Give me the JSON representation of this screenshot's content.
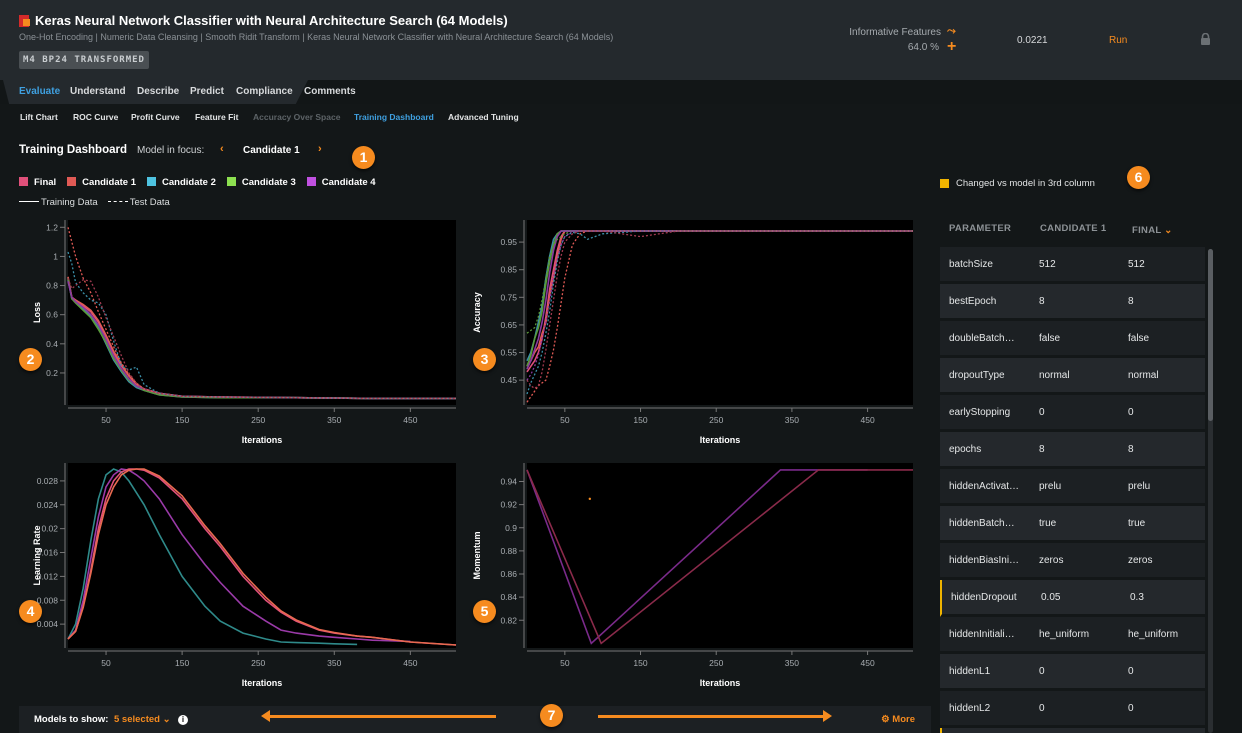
{
  "header": {
    "title": "Keras Neural Network Classifier with Neural Architecture Search (64 Models)",
    "subtitle": "One-Hot Encoding | Numeric Data Cleansing | Smooth Ridit Transform | Keras Neural Network Classifier with Neural Architecture Search (64 Models)",
    "tag": "M4 BP24 TRANSFORMED",
    "informative_label": "Informative Features",
    "informative_pct": "64.0 %",
    "score": "0.0221",
    "run_label": "Run",
    "icons": [
      "feature-list-icon",
      "plus-icon",
      "lock-icon"
    ]
  },
  "tabs": [
    "Evaluate",
    "Understand",
    "Describe",
    "Predict",
    "Compliance",
    "Comments"
  ],
  "subtabs": [
    "Lift Chart",
    "ROC Curve",
    "Profit Curve",
    "Feature Fit",
    "Accuracy Over Space",
    "Training Dashboard",
    "Advanced Tuning"
  ],
  "dashboard": {
    "title": "Training Dashboard",
    "focus_label": "Model in focus:",
    "focus_value": "Candidate 1",
    "prev": "‹",
    "next": "›",
    "legend": [
      {
        "name": "Final",
        "color": "#e0507a"
      },
      {
        "name": "Candidate 1",
        "color": "#e05a55"
      },
      {
        "name": "Candidate 2",
        "color": "#4ec3e0"
      },
      {
        "name": "Candidate 3",
        "color": "#8de050"
      },
      {
        "name": "Candidate 4",
        "color": "#c050e0"
      }
    ],
    "line_legend": {
      "training": "Training Data",
      "test": "Test Data"
    }
  },
  "badges": [
    "1",
    "2",
    "3",
    "4",
    "5",
    "6",
    "7"
  ],
  "chart_data": [
    {
      "type": "line",
      "ylabel": "Loss",
      "xlabel": "Iterations",
      "xlim": [
        0,
        510
      ],
      "ylim": [
        -0.02,
        1.25
      ],
      "xticks": [
        50,
        150,
        250,
        350,
        450
      ],
      "yticks": [
        0.2,
        0.4,
        0.6,
        0.8,
        1,
        1.2
      ],
      "x": [
        0,
        5,
        10,
        20,
        30,
        40,
        50,
        60,
        70,
        80,
        90,
        100,
        120,
        150,
        200,
        300,
        400,
        510
      ],
      "series": [
        {
          "name": "Final",
          "dash": false,
          "color": "#e0507a",
          "values": [
            0.85,
            0.72,
            0.7,
            0.66,
            0.62,
            0.55,
            0.45,
            0.34,
            0.25,
            0.18,
            0.12,
            0.09,
            0.06,
            0.04,
            0.035,
            0.03,
            0.025,
            0.025
          ]
        },
        {
          "name": "Candidate 1",
          "dash": false,
          "color": "#e05a55",
          "values": [
            0.86,
            0.72,
            0.7,
            0.67,
            0.63,
            0.56,
            0.46,
            0.35,
            0.26,
            0.18,
            0.12,
            0.09,
            0.06,
            0.04,
            0.035,
            0.03,
            0.025,
            0.025
          ]
        },
        {
          "name": "Candidate 2",
          "dash": false,
          "color": "#3a8fa8",
          "values": [
            0.84,
            0.71,
            0.69,
            0.64,
            0.59,
            0.51,
            0.4,
            0.29,
            0.21,
            0.14,
            0.1,
            0.08,
            0.05,
            0.035,
            0.03,
            0.03,
            0.025,
            0.025
          ]
        },
        {
          "name": "Candidate 3",
          "dash": false,
          "color": "#5a9a3a",
          "values": [
            0.85,
            0.71,
            0.68,
            0.63,
            0.58,
            0.5,
            0.41,
            0.3,
            0.22,
            0.15,
            0.11,
            0.08,
            0.05,
            0.035,
            0.03,
            0.03,
            0.025,
            0.025
          ]
        },
        {
          "name": "Candidate 4",
          "dash": false,
          "color": "#8a3aa0",
          "values": [
            0.83,
            0.72,
            0.69,
            0.65,
            0.6,
            0.53,
            0.43,
            0.32,
            0.23,
            0.16,
            0.11,
            0.09,
            0.06,
            0.04,
            0.035,
            0.03,
            0.025,
            0.025
          ]
        },
        {
          "name": "Candidate 1",
          "dash": true,
          "color": "#e05a55",
          "values": [
            1.2,
            1.1,
            1.0,
            0.85,
            0.75,
            0.62,
            0.5,
            0.38,
            0.27,
            0.19,
            0.13,
            0.09,
            0.06,
            0.04,
            0.035,
            0.03,
            0.025,
            0.025
          ]
        },
        {
          "name": "Candidate 2",
          "dash": true,
          "color": "#3a8fa8",
          "values": [
            1.03,
            0.95,
            0.82,
            0.75,
            0.7,
            0.68,
            0.6,
            0.42,
            0.25,
            0.22,
            0.24,
            0.12,
            0.06,
            0.04,
            0.035,
            0.03,
            0.025,
            0.025
          ]
        },
        {
          "name": "Final",
          "dash": true,
          "color": "#a03a50",
          "values": [
            0.85,
            0.78,
            0.8,
            0.84,
            0.83,
            0.72,
            0.58,
            0.45,
            0.32,
            0.2,
            0.13,
            0.09,
            0.06,
            0.04,
            0.035,
            0.03,
            0.025,
            0.025
          ]
        }
      ]
    },
    {
      "type": "line",
      "ylabel": "Accuracy",
      "xlabel": "Iterations",
      "xlim": [
        0,
        510
      ],
      "ylim": [
        0.36,
        1.03
      ],
      "xticks": [
        50,
        150,
        250,
        350,
        450
      ],
      "yticks": [
        0.45,
        0.55,
        0.65,
        0.75,
        0.85,
        0.95
      ],
      "x": [
        0,
        5,
        10,
        15,
        20,
        25,
        30,
        35,
        40,
        45,
        50,
        60,
        70,
        80,
        100,
        150,
        200,
        300,
        400,
        510
      ],
      "series": [
        {
          "name": "Final",
          "dash": false,
          "color": "#e0507a",
          "values": [
            0.48,
            0.5,
            0.52,
            0.55,
            0.6,
            0.68,
            0.78,
            0.85,
            0.92,
            0.97,
            0.99,
            0.99,
            0.99,
            0.99,
            0.99,
            0.99,
            0.99,
            0.99,
            0.99,
            0.99
          ]
        },
        {
          "name": "Candidate 1",
          "dash": false,
          "color": "#e05a55",
          "values": [
            0.5,
            0.52,
            0.55,
            0.57,
            0.62,
            0.66,
            0.76,
            0.82,
            0.9,
            0.96,
            0.99,
            0.99,
            0.99,
            0.99,
            0.99,
            0.99,
            0.99,
            0.99,
            0.99,
            0.99
          ]
        },
        {
          "name": "Candidate 2",
          "dash": false,
          "color": "#3a8fa8",
          "values": [
            0.52,
            0.55,
            0.6,
            0.66,
            0.72,
            0.82,
            0.9,
            0.96,
            0.98,
            0.99,
            0.99,
            0.99,
            0.99,
            0.99,
            0.99,
            0.99,
            0.99,
            0.99,
            0.99,
            0.99
          ]
        },
        {
          "name": "Candidate 3",
          "dash": false,
          "color": "#5a9a3a",
          "values": [
            0.5,
            0.54,
            0.6,
            0.64,
            0.7,
            0.8,
            0.88,
            0.94,
            0.98,
            0.99,
            0.99,
            0.99,
            0.99,
            0.99,
            0.99,
            0.99,
            0.99,
            0.99,
            0.99,
            0.99
          ]
        },
        {
          "name": "Candidate 4",
          "dash": false,
          "color": "#8a3aa0",
          "values": [
            0.49,
            0.52,
            0.56,
            0.6,
            0.66,
            0.74,
            0.84,
            0.92,
            0.97,
            0.99,
            0.99,
            0.99,
            0.99,
            0.99,
            0.99,
            0.99,
            0.99,
            0.99,
            0.99,
            0.99
          ]
        },
        {
          "name": "Candidate 1",
          "dash": true,
          "color": "#e05a55",
          "values": [
            0.37,
            0.39,
            0.41,
            0.43,
            0.44,
            0.45,
            0.5,
            0.56,
            0.64,
            0.73,
            0.82,
            0.94,
            0.98,
            0.99,
            0.99,
            0.99,
            0.99,
            0.99,
            0.99,
            0.99
          ]
        },
        {
          "name": "Candidate 2",
          "dash": true,
          "color": "#3a8fa8",
          "values": [
            0.4,
            0.44,
            0.47,
            0.5,
            0.55,
            0.62,
            0.7,
            0.8,
            0.88,
            0.94,
            0.97,
            0.985,
            0.98,
            0.96,
            0.98,
            0.99,
            0.99,
            0.99,
            0.99,
            0.99
          ]
        },
        {
          "name": "Candidate 3",
          "dash": true,
          "color": "#5a9a3a",
          "values": [
            0.62,
            0.63,
            0.64,
            0.68,
            0.74,
            0.82,
            0.9,
            0.94,
            0.96,
            0.97,
            0.98,
            0.99,
            0.99,
            0.99,
            0.99,
            0.99,
            0.99,
            0.99,
            0.99,
            0.99
          ]
        },
        {
          "name": "Candidate 4",
          "dash": true,
          "color": "#8a3aa0",
          "values": [
            0.45,
            0.47,
            0.5,
            0.54,
            0.6,
            0.66,
            0.74,
            0.82,
            0.89,
            0.94,
            0.97,
            0.99,
            0.99,
            0.99,
            0.99,
            0.99,
            0.99,
            0.99,
            0.99,
            0.99
          ]
        },
        {
          "name": "Final",
          "dash": true,
          "color": "#a03a50",
          "values": [
            0.45,
            0.43,
            0.42,
            0.43,
            0.48,
            0.56,
            0.65,
            0.74,
            0.83,
            0.9,
            0.95,
            0.98,
            0.99,
            0.99,
            0.99,
            0.97,
            0.99,
            0.99,
            0.99,
            0.99
          ]
        }
      ]
    },
    {
      "type": "line",
      "ylabel": "Learning Rate",
      "xlabel": "Iterations",
      "xlim": [
        0,
        510
      ],
      "ylim": [
        0,
        0.031
      ],
      "xticks": [
        50,
        150,
        250,
        350,
        450
      ],
      "yticks": [
        0.004,
        0.008,
        0.012,
        0.016,
        0.02,
        0.024,
        0.028
      ],
      "x": [
        0,
        10,
        20,
        30,
        40,
        50,
        60,
        70,
        80,
        90,
        100,
        120,
        150,
        180,
        200,
        230,
        260,
        280,
        300,
        330,
        350,
        380,
        400,
        450,
        510
      ],
      "series": [
        {
          "name": "Candidate 2",
          "dash": false,
          "color": "#2f8a8a",
          "values": [
            0.0015,
            0.004,
            0.01,
            0.018,
            0.025,
            0.029,
            0.03,
            0.0295,
            0.028,
            0.026,
            0.024,
            0.019,
            0.012,
            0.007,
            0.0045,
            0.0025,
            0.0015,
            0.001,
            0.0009,
            0.0008,
            0.0007,
            0.0006,
            null,
            null,
            null
          ]
        },
        {
          "name": "Candidate 4",
          "dash": false,
          "color": "#9a3aa8",
          "values": [
            0.0015,
            0.003,
            0.008,
            0.015,
            0.022,
            0.027,
            0.029,
            0.03,
            0.0298,
            0.029,
            0.028,
            0.025,
            0.019,
            0.014,
            0.011,
            0.007,
            0.0045,
            0.003,
            0.0025,
            0.002,
            0.0018,
            0.0015,
            0.0013,
            0.0011,
            null
          ]
        },
        {
          "name": "Final",
          "dash": false,
          "color": "#e0507a",
          "values": [
            0.0015,
            0.0028,
            0.007,
            0.013,
            0.02,
            0.025,
            0.028,
            0.0295,
            0.03,
            0.03,
            0.0298,
            0.0285,
            0.025,
            0.02,
            0.017,
            0.012,
            0.008,
            0.006,
            0.0045,
            0.003,
            0.0025,
            0.002,
            0.0018,
            0.001,
            0.0005
          ]
        },
        {
          "name": "Candidate 1",
          "dash": false,
          "color": "#e86a50",
          "values": [
            0.0015,
            0.0028,
            0.0068,
            0.0125,
            0.019,
            0.024,
            0.027,
            0.029,
            0.0298,
            0.03,
            0.03,
            0.0288,
            0.0255,
            0.0205,
            0.0175,
            0.0125,
            0.0085,
            0.0062,
            0.0047,
            0.0031,
            0.0026,
            0.002,
            0.0018,
            0.001,
            0.0005
          ]
        }
      ]
    },
    {
      "type": "line",
      "ylabel": "Momentum",
      "xlabel": "Iterations",
      "xlim": [
        0,
        510
      ],
      "ylim": [
        0.796,
        0.956
      ],
      "xticks": [
        50,
        150,
        250,
        350,
        450
      ],
      "yticks": [
        0.82,
        0.84,
        0.86,
        0.88,
        0.9,
        0.92,
        0.94
      ],
      "series": [
        {
          "name": "Candidate 4",
          "dash": false,
          "color": "#7a2a8a",
          "x": [
            0,
            85,
            335,
            450
          ],
          "values": [
            0.95,
            0.8,
            0.95,
            0.95
          ]
        },
        {
          "name": "Final",
          "dash": false,
          "color": "#8a2a4a",
          "x": [
            0,
            98,
            385,
            510
          ],
          "values": [
            0.95,
            0.8,
            0.95,
            0.95
          ]
        }
      ],
      "points": [
        {
          "x": 83,
          "y": 0.925,
          "color": "#f68b1f"
        }
      ]
    }
  ],
  "params": {
    "changed_legend": "Changed vs model in 3rd column",
    "highlight": "#f0b400",
    "headers": [
      "PARAMETER",
      "CANDIDATE 1",
      "FINAL"
    ],
    "rows": [
      {
        "name": "batchSize",
        "c1": "512",
        "final": "512"
      },
      {
        "name": "bestEpoch",
        "c1": "8",
        "final": "8"
      },
      {
        "name": "doubleBatch…",
        "c1": "false",
        "final": "false"
      },
      {
        "name": "dropoutType",
        "c1": "normal",
        "final": "normal"
      },
      {
        "name": "earlyStopping",
        "c1": "0",
        "final": "0"
      },
      {
        "name": "epochs",
        "c1": "8",
        "final": "8"
      },
      {
        "name": "hiddenActivat…",
        "c1": "prelu",
        "final": "prelu"
      },
      {
        "name": "hiddenBatch…",
        "c1": "true",
        "final": "true"
      },
      {
        "name": "hiddenBiasIni…",
        "c1": "zeros",
        "final": "zeros"
      },
      {
        "name": "hiddenDropout",
        "c1": "0.05",
        "final": "0.3",
        "changed": true
      },
      {
        "name": "hiddenInitiali…",
        "c1": "he_uniform",
        "final": "he_uniform"
      },
      {
        "name": "hiddenL1",
        "c1": "0",
        "final": "0"
      },
      {
        "name": "hiddenL2",
        "c1": "0",
        "final": "0"
      },
      {
        "name": "",
        "c1": "",
        "final": "",
        "changed": true
      }
    ]
  },
  "footer": {
    "models_label": "Models to show:",
    "selected": "5 selected ⌄",
    "info": "i",
    "more": "⚙ More"
  }
}
